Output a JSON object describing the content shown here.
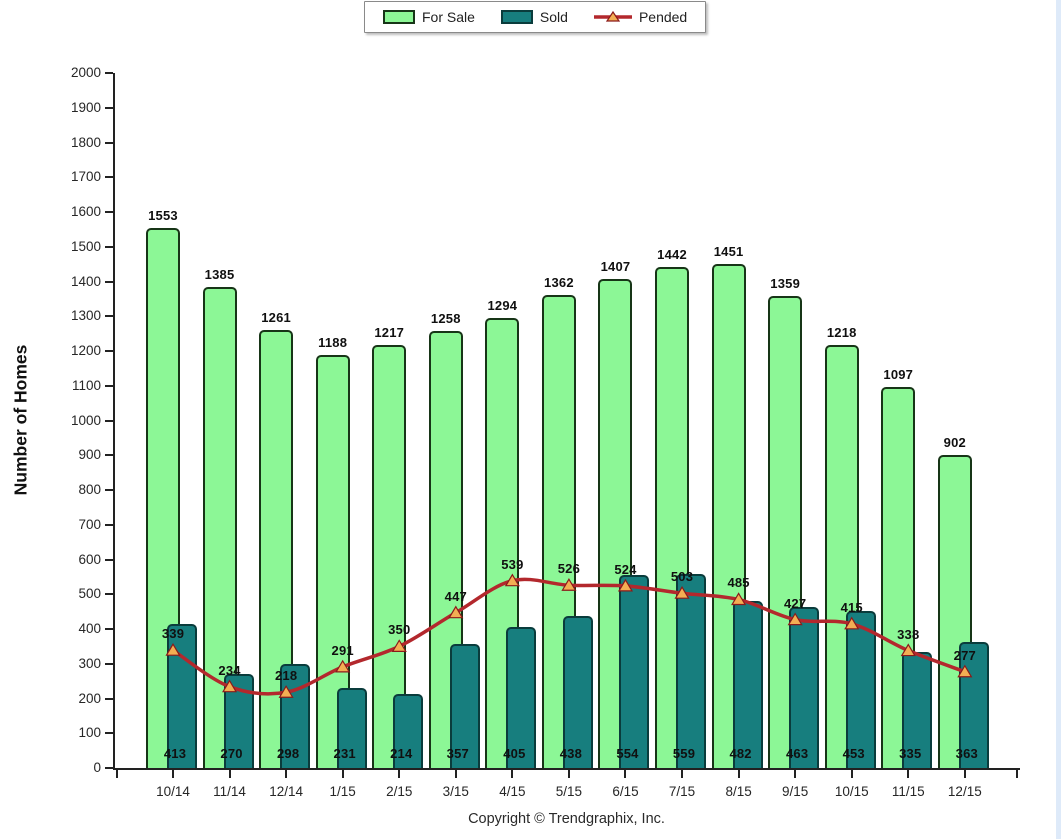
{
  "legend": {
    "items": [
      {
        "label": "For Sale"
      },
      {
        "label": "Sold"
      },
      {
        "label": "Pended"
      }
    ]
  },
  "footer": "Copyright © Trendgraphix, Inc.",
  "colors": {
    "for_sale_fill": "#8CF796",
    "for_sale_border": "#173517",
    "sold_fill": "#177E7E",
    "sold_border": "#0A3C3C",
    "pended_line": "#B3282D",
    "pended_marker_fill": "#F3AE53",
    "pended_marker_border": "#8B1A1A",
    "axis": "#222222",
    "label_text": "#101010",
    "page_edge_stripe": "#DEEAF9"
  },
  "chart_data": {
    "type": "bar",
    "subtype": "overlapping grouped bars with smoothed line overlay and data labels",
    "title": "",
    "xlabel": "",
    "ylabel": "Number of Homes",
    "ylim": [
      0,
      2000
    ],
    "ytick_step": 100,
    "grid": false,
    "legend_position": "top-center",
    "data_labels": true,
    "categories": [
      "10/14",
      "11/14",
      "12/14",
      "1/15",
      "2/15",
      "3/15",
      "4/15",
      "5/15",
      "6/15",
      "7/15",
      "8/15",
      "9/15",
      "10/15",
      "11/15",
      "12/15"
    ],
    "series": [
      {
        "name": "For Sale",
        "type": "bar",
        "color": "#8CF796",
        "values": [
          1553,
          1385,
          1261,
          1188,
          1217,
          1258,
          1294,
          1362,
          1407,
          1442,
          1451,
          1359,
          1218,
          1097,
          902
        ],
        "label_position": "above-bar"
      },
      {
        "name": "Sold",
        "type": "bar",
        "color": "#177E7E",
        "values": [
          413,
          270,
          298,
          231,
          214,
          357,
          405,
          438,
          554,
          559,
          482,
          463,
          453,
          335,
          363
        ],
        "label_position": "bottom-inside"
      },
      {
        "name": "Pended",
        "type": "line",
        "marker": "triangle",
        "color": "#B3282D",
        "values": [
          339,
          234,
          218,
          291,
          350,
          447,
          539,
          526,
          524,
          503,
          485,
          427,
          415,
          338,
          277
        ],
        "label_position": "above-marker"
      }
    ]
  }
}
